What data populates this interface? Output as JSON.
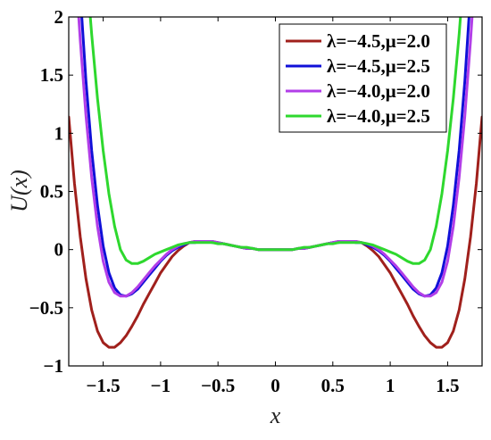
{
  "chart_data": {
    "type": "line",
    "xlabel": "x",
    "ylabel": "U(x)",
    "xlim": [
      -1.8,
      1.8
    ],
    "ylim": [
      -1,
      2
    ],
    "xticks": [
      -1.5,
      -1,
      -0.5,
      0,
      0.5,
      1,
      1.5
    ],
    "xtick_labels": [
      "−1.5",
      "−1",
      "−0.5",
      "0",
      "0.5",
      "1",
      "1.5"
    ],
    "yticks": [
      -1,
      -0.5,
      0,
      0.5,
      1,
      1.5,
      2
    ],
    "ytick_labels": [
      "−1",
      "−0.5",
      "0",
      "0.5",
      "1",
      "1.5",
      "2"
    ],
    "grid": false,
    "legend_position": "top-right",
    "series": [
      {
        "name": "λ=−4.5,μ=2.0",
        "color": "#a0201c",
        "x": [
          -1.8,
          -1.75,
          -1.7,
          -1.65,
          -1.6,
          -1.55,
          -1.5,
          -1.45,
          -1.4,
          -1.35,
          -1.3,
          -1.25,
          -1.2,
          -1.15,
          -1.1,
          -1.05,
          -1.0,
          -0.95,
          -0.9,
          -0.85,
          -0.8,
          -0.75,
          -0.7,
          -0.65,
          -0.6,
          -0.55,
          -0.5,
          -0.45,
          -0.4,
          -0.35,
          -0.3,
          -0.25,
          -0.2,
          -0.15,
          -0.1,
          -0.05,
          0.0,
          0.05,
          0.1,
          0.15,
          0.2,
          0.25,
          0.3,
          0.35,
          0.4,
          0.45,
          0.5,
          0.55,
          0.6,
          0.65,
          0.7,
          0.75,
          0.8,
          0.85,
          0.9,
          0.95,
          1.0,
          1.05,
          1.1,
          1.15,
          1.2,
          1.25,
          1.3,
          1.35,
          1.4,
          1.45,
          1.5,
          1.55,
          1.6,
          1.65,
          1.7,
          1.75,
          1.8
        ],
        "y": [
          1.14,
          0.57,
          0.11,
          -0.25,
          -0.52,
          -0.7,
          -0.8,
          -0.84,
          -0.84,
          -0.8,
          -0.74,
          -0.66,
          -0.57,
          -0.47,
          -0.38,
          -0.29,
          -0.2,
          -0.13,
          -0.06,
          -0.01,
          0.03,
          0.06,
          0.07,
          0.07,
          0.07,
          0.07,
          0.06,
          0.05,
          0.04,
          0.03,
          0.02,
          0.01,
          0.01,
          0.0,
          0.0,
          0.0,
          0.0,
          0.0,
          0.0,
          0.0,
          0.01,
          0.01,
          0.02,
          0.03,
          0.04,
          0.05,
          0.06,
          0.07,
          0.07,
          0.07,
          0.07,
          0.06,
          0.03,
          -0.01,
          -0.06,
          -0.13,
          -0.2,
          -0.29,
          -0.38,
          -0.47,
          -0.57,
          -0.66,
          -0.74,
          -0.8,
          -0.84,
          -0.84,
          -0.8,
          -0.7,
          -0.52,
          -0.25,
          0.11,
          0.57,
          1.14
        ]
      },
      {
        "name": "λ=−4.5,μ=2.5",
        "color": "#1010d8",
        "x": [
          -1.7,
          -1.65,
          -1.6,
          -1.55,
          -1.5,
          -1.45,
          -1.4,
          -1.35,
          -1.3,
          -1.25,
          -1.2,
          -1.15,
          -1.1,
          -1.05,
          -1.0,
          -0.95,
          -0.9,
          -0.85,
          -0.8,
          -0.75,
          -0.7,
          -0.65,
          -0.6,
          -0.55,
          -0.5,
          -0.45,
          -0.4,
          -0.35,
          -0.3,
          -0.25,
          -0.2,
          -0.15,
          -0.1,
          -0.05,
          0.0,
          0.05,
          0.1,
          0.15,
          0.2,
          0.25,
          0.3,
          0.35,
          0.4,
          0.45,
          0.5,
          0.55,
          0.6,
          0.65,
          0.7,
          0.75,
          0.8,
          0.85,
          0.9,
          0.95,
          1.0,
          1.05,
          1.1,
          1.15,
          1.2,
          1.25,
          1.3,
          1.35,
          1.4,
          1.45,
          1.5,
          1.55,
          1.6,
          1.65,
          1.7
        ],
        "y": [
          2.2,
          1.45,
          0.85,
          0.38,
          0.03,
          -0.2,
          -0.33,
          -0.39,
          -0.4,
          -0.38,
          -0.34,
          -0.28,
          -0.22,
          -0.16,
          -0.1,
          -0.05,
          -0.01,
          0.02,
          0.04,
          0.06,
          0.06,
          0.07,
          0.07,
          0.06,
          0.06,
          0.05,
          0.04,
          0.03,
          0.02,
          0.01,
          0.01,
          0.0,
          0.0,
          0.0,
          0.0,
          0.0,
          0.0,
          0.0,
          0.01,
          0.01,
          0.02,
          0.03,
          0.04,
          0.05,
          0.06,
          0.06,
          0.07,
          0.07,
          0.06,
          0.06,
          0.04,
          0.02,
          -0.01,
          -0.05,
          -0.1,
          -0.16,
          -0.22,
          -0.28,
          -0.34,
          -0.38,
          -0.4,
          -0.39,
          -0.33,
          -0.2,
          0.03,
          0.38,
          0.85,
          1.45,
          2.2
        ]
      },
      {
        "name": "λ=−4.0,μ=2.0",
        "color": "#b23ee8",
        "x": [
          -1.72,
          -1.7,
          -1.65,
          -1.6,
          -1.55,
          -1.5,
          -1.45,
          -1.4,
          -1.35,
          -1.3,
          -1.25,
          -1.2,
          -1.15,
          -1.1,
          -1.05,
          -1.0,
          -0.95,
          -0.9,
          -0.85,
          -0.8,
          -0.75,
          -0.7,
          -0.65,
          -0.6,
          -0.55,
          -0.5,
          -0.45,
          -0.4,
          -0.35,
          -0.3,
          -0.25,
          -0.2,
          -0.15,
          -0.1,
          -0.05,
          0.0,
          0.05,
          0.1,
          0.15,
          0.2,
          0.25,
          0.3,
          0.35,
          0.4,
          0.45,
          0.5,
          0.55,
          0.6,
          0.65,
          0.7,
          0.75,
          0.8,
          0.85,
          0.9,
          0.95,
          1.0,
          1.05,
          1.1,
          1.15,
          1.2,
          1.25,
          1.3,
          1.35,
          1.4,
          1.45,
          1.5,
          1.55,
          1.6,
          1.65,
          1.7,
          1.72
        ],
        "y": [
          2.1,
          1.8,
          1.15,
          0.62,
          0.2,
          -0.1,
          -0.28,
          -0.37,
          -0.4,
          -0.4,
          -0.37,
          -0.32,
          -0.26,
          -0.2,
          -0.14,
          -0.09,
          -0.04,
          0.0,
          0.03,
          0.05,
          0.06,
          0.07,
          0.07,
          0.07,
          0.07,
          0.06,
          0.05,
          0.04,
          0.03,
          0.02,
          0.01,
          0.01,
          0.0,
          0.0,
          0.0,
          0.0,
          0.0,
          0.0,
          0.0,
          0.01,
          0.01,
          0.02,
          0.03,
          0.04,
          0.05,
          0.06,
          0.07,
          0.07,
          0.07,
          0.07,
          0.06,
          0.05,
          0.03,
          0.0,
          -0.04,
          -0.09,
          -0.14,
          -0.2,
          -0.26,
          -0.32,
          -0.37,
          -0.4,
          -0.4,
          -0.37,
          -0.28,
          -0.1,
          0.2,
          0.62,
          1.15,
          1.8,
          2.1
        ]
      },
      {
        "name": "λ=−4.0,μ=2.5",
        "color": "#2ed82e",
        "x": [
          -1.62,
          -1.6,
          -1.55,
          -1.5,
          -1.45,
          -1.4,
          -1.35,
          -1.3,
          -1.25,
          -1.2,
          -1.15,
          -1.1,
          -1.05,
          -1.0,
          -0.95,
          -0.9,
          -0.85,
          -0.8,
          -0.75,
          -0.7,
          -0.65,
          -0.6,
          -0.55,
          -0.5,
          -0.45,
          -0.4,
          -0.35,
          -0.3,
          -0.25,
          -0.2,
          -0.15,
          -0.1,
          -0.05,
          0.0,
          0.05,
          0.1,
          0.15,
          0.2,
          0.25,
          0.3,
          0.35,
          0.4,
          0.45,
          0.5,
          0.55,
          0.6,
          0.65,
          0.7,
          0.75,
          0.8,
          0.85,
          0.9,
          0.95,
          1.0,
          1.05,
          1.1,
          1.15,
          1.2,
          1.25,
          1.3,
          1.35,
          1.4,
          1.45,
          1.5,
          1.55,
          1.6,
          1.62
        ],
        "y": [
          2.1,
          1.85,
          1.3,
          0.85,
          0.48,
          0.2,
          0.0,
          -0.09,
          -0.12,
          -0.12,
          -0.1,
          -0.07,
          -0.04,
          -0.02,
          0.0,
          0.02,
          0.04,
          0.05,
          0.06,
          0.06,
          0.06,
          0.06,
          0.06,
          0.05,
          0.05,
          0.04,
          0.03,
          0.02,
          0.02,
          0.01,
          0.0,
          0.0,
          0.0,
          0.0,
          0.0,
          0.0,
          0.0,
          0.01,
          0.02,
          0.02,
          0.03,
          0.04,
          0.05,
          0.05,
          0.06,
          0.06,
          0.06,
          0.06,
          0.06,
          0.05,
          0.04,
          0.02,
          0.0,
          -0.02,
          -0.04,
          -0.07,
          -0.1,
          -0.12,
          -0.12,
          -0.09,
          0.0,
          0.2,
          0.48,
          0.85,
          1.3,
          1.85,
          2.1
        ]
      }
    ]
  }
}
